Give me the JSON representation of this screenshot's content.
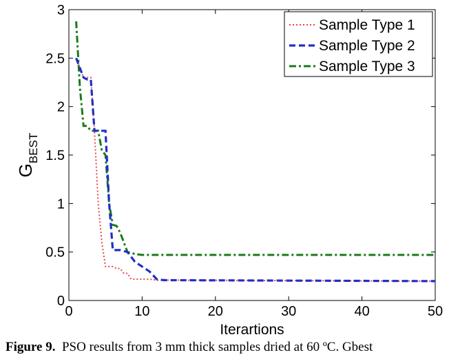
{
  "caption": {
    "label": "Figure 9.",
    "text": "PSO results from 3 mm thick samples dried at 60 ºC. Gbest"
  },
  "chart_data": {
    "type": "line",
    "title": "",
    "xlabel": "Iterartions",
    "ylabel_main": "G",
    "ylabel_sub": "BEST",
    "xlim": [
      0,
      50
    ],
    "ylim": [
      0,
      3
    ],
    "xticks": [
      0,
      10,
      20,
      30,
      40,
      50
    ],
    "yticks": [
      0,
      0.5,
      1,
      1.5,
      2,
      2.5,
      3
    ],
    "ytick_labels": [
      "0",
      "0.5",
      "1",
      "1.5",
      "2",
      "2.5",
      "3"
    ],
    "grid": false,
    "legend_position": "top-right",
    "series": [
      {
        "name": "Sample Type 1",
        "color": "#e8454a",
        "style": "dotted",
        "x": [
          1,
          2,
          3,
          3.5,
          4,
          4.5,
          5,
          6,
          6.5,
          7,
          7.5,
          8,
          8.5,
          9,
          10,
          11,
          12,
          13,
          14,
          50
        ],
        "y": [
          2.5,
          2.3,
          2.3,
          1.75,
          1.0,
          0.6,
          0.35,
          0.35,
          0.33,
          0.33,
          0.28,
          0.28,
          0.22,
          0.22,
          0.22,
          0.22,
          0.21,
          0.21,
          0.21,
          0.2
        ]
      },
      {
        "name": "Sample Type 2",
        "color": "#1f2fc8",
        "style": "dashed",
        "x": [
          1,
          2,
          2.5,
          3,
          3.5,
          4,
          5,
          5.5,
          6,
          6.5,
          7,
          8,
          9,
          10,
          11,
          12,
          13,
          50
        ],
        "y": [
          2.5,
          2.3,
          2.28,
          2.28,
          1.75,
          1.75,
          1.75,
          1.0,
          0.52,
          0.52,
          0.52,
          0.5,
          0.4,
          0.35,
          0.3,
          0.22,
          0.21,
          0.2
        ]
      },
      {
        "name": "Sample Type 3",
        "color": "#1a7a1a",
        "style": "dashdot",
        "x": [
          1,
          1.5,
          2,
          2.5,
          3,
          4,
          4.5,
          5,
          5.5,
          6,
          6.5,
          7,
          7.5,
          8,
          9,
          10,
          50
        ],
        "y": [
          2.88,
          2.2,
          1.8,
          1.8,
          1.75,
          1.75,
          1.55,
          1.5,
          1.0,
          0.78,
          0.77,
          0.7,
          0.6,
          0.5,
          0.48,
          0.47,
          0.47
        ]
      }
    ]
  }
}
